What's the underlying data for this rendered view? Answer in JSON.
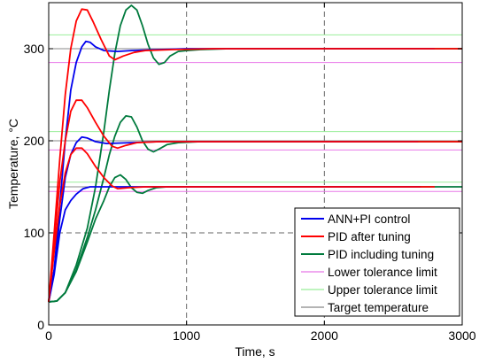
{
  "chart_data": {
    "type": "line",
    "xlabel": "Time, s",
    "ylabel": "Temperature, °C",
    "xlim": [
      0,
      3000
    ],
    "ylim": [
      0,
      350
    ],
    "xticks": [
      0,
      1000,
      2000,
      3000
    ],
    "yticks": [
      0,
      100,
      200,
      300
    ],
    "xtick_labels": [
      "0",
      "1000",
      "2000",
      "3000"
    ],
    "ytick_labels": [
      "0",
      "100",
      "200",
      "300"
    ],
    "grid": "dashed lines at x=1000, x=2000, y=100",
    "legend_position": "bottom-right",
    "colors": {
      "ann_pi": "#0000ee",
      "pid_after": "#ff0000",
      "pid_including": "#007a3d",
      "lower_limit": "#e878e8",
      "upper_limit": "#99ee99",
      "target": "#888888",
      "grid": "#666666"
    },
    "series": [
      {
        "name": "ANN+PI control",
        "color_key": "ann_pi",
        "runs": [
          {
            "target": 300,
            "points": [
              [
                0,
                25
              ],
              [
                40,
                60
              ],
              [
                80,
                130
              ],
              [
                120,
                200
              ],
              [
                160,
                255
              ],
              [
                200,
                285
              ],
              [
                240,
                302
              ],
              [
                270,
                308
              ],
              [
                300,
                307
              ],
              [
                340,
                302
              ],
              [
                400,
                298
              ],
              [
                500,
                297
              ],
              [
                600,
                298
              ],
              [
                800,
                299
              ],
              [
                1000,
                300
              ],
              [
                1400,
                300
              ],
              [
                2000,
                300
              ],
              [
                2800,
                300
              ]
            ]
          },
          {
            "target": 200,
            "points": [
              [
                0,
                25
              ],
              [
                40,
                60
              ],
              [
                80,
                115
              ],
              [
                120,
                160
              ],
              [
                160,
                185
              ],
              [
                200,
                198
              ],
              [
                240,
                204
              ],
              [
                280,
                203
              ],
              [
                340,
                199
              ],
              [
                420,
                197
              ],
              [
                600,
                198
              ],
              [
                800,
                199
              ],
              [
                1200,
                199
              ],
              [
                2000,
                199
              ],
              [
                2680,
                199
              ]
            ]
          },
          {
            "target": 150,
            "points": [
              [
                0,
                25
              ],
              [
                40,
                55
              ],
              [
                80,
                100
              ],
              [
                120,
                125
              ],
              [
                160,
                135
              ],
              [
                200,
                142
              ],
              [
                250,
                148
              ],
              [
                300,
                150
              ],
              [
                400,
                150
              ],
              [
                600,
                150
              ],
              [
                1000,
                150
              ],
              [
                1500,
                150
              ],
              [
                2000,
                150
              ],
              [
                2700,
                150
              ]
            ]
          }
        ]
      },
      {
        "name": "PID after tuning",
        "color_key": "pid_after",
        "runs": [
          {
            "target": 300,
            "points": [
              [
                0,
                25
              ],
              [
                40,
                100
              ],
              [
                80,
                180
              ],
              [
                120,
                250
              ],
              [
                160,
                300
              ],
              [
                200,
                330
              ],
              [
                240,
                343
              ],
              [
                280,
                342
              ],
              [
                320,
                330
              ],
              [
                380,
                310
              ],
              [
                440,
                292
              ],
              [
                480,
                288
              ],
              [
                540,
                292
              ],
              [
                620,
                296
              ],
              [
                700,
                298
              ],
              [
                900,
                299
              ],
              [
                1200,
                300
              ],
              [
                2000,
                300
              ],
              [
                3000,
                300
              ]
            ]
          },
          {
            "target": 200,
            "points": [
              [
                0,
                25
              ],
              [
                40,
                90
              ],
              [
                80,
                155
              ],
              [
                120,
                200
              ],
              [
                160,
                232
              ],
              [
                200,
                244
              ],
              [
                240,
                244
              ],
              [
                280,
                236
              ],
              [
                340,
                220
              ],
              [
                400,
                205
              ],
              [
                460,
                194
              ],
              [
                500,
                192
              ],
              [
                560,
                195
              ],
              [
                640,
                198
              ],
              [
                800,
                199
              ],
              [
                1200,
                199
              ],
              [
                2000,
                199
              ],
              [
                3000,
                199
              ]
            ]
          },
          {
            "target": 150,
            "points": [
              [
                0,
                25
              ],
              [
                40,
                80
              ],
              [
                80,
                130
              ],
              [
                120,
                165
              ],
              [
                160,
                185
              ],
              [
                200,
                192
              ],
              [
                240,
                192
              ],
              [
                280,
                186
              ],
              [
                340,
                172
              ],
              [
                400,
                160
              ],
              [
                460,
                151
              ],
              [
                500,
                148
              ],
              [
                580,
                149
              ],
              [
                700,
                150
              ],
              [
                1000,
                150
              ],
              [
                2000,
                150
              ],
              [
                2800,
                150
              ]
            ]
          }
        ]
      },
      {
        "name": "PID including tuning",
        "color_key": "pid_including",
        "runs": [
          {
            "target": 300,
            "points": [
              [
                0,
                25
              ],
              [
                60,
                26
              ],
              [
                120,
                35
              ],
              [
                200,
                65
              ],
              [
                280,
                105
              ],
              [
                340,
                150
              ],
              [
                400,
                210
              ],
              [
                440,
                255
              ],
              [
                480,
                295
              ],
              [
                520,
                325
              ],
              [
                560,
                342
              ],
              [
                600,
                347
              ],
              [
                640,
                342
              ],
              [
                680,
                325
              ],
              [
                720,
                305
              ],
              [
                760,
                290
              ],
              [
                800,
                283
              ],
              [
                840,
                285
              ],
              [
                880,
                292
              ],
              [
                940,
                297
              ],
              [
                1000,
                298
              ],
              [
                1100,
                299
              ],
              [
                1300,
                300
              ],
              [
                2000,
                300
              ],
              [
                3000,
                300
              ]
            ]
          },
          {
            "target": 200,
            "points": [
              [
                0,
                25
              ],
              [
                60,
                26
              ],
              [
                120,
                35
              ],
              [
                200,
                60
              ],
              [
                280,
                95
              ],
              [
                340,
                125
              ],
              [
                400,
                160
              ],
              [
                440,
                185
              ],
              [
                480,
                205
              ],
              [
                520,
                220
              ],
              [
                560,
                227
              ],
              [
                600,
                226
              ],
              [
                640,
                215
              ],
              [
                680,
                200
              ],
              [
                720,
                191
              ],
              [
                760,
                188
              ],
              [
                800,
                191
              ],
              [
                860,
                196
              ],
              [
                940,
                198
              ],
              [
                1100,
                199
              ],
              [
                1500,
                199
              ],
              [
                2000,
                199
              ],
              [
                3000,
                199
              ]
            ]
          },
          {
            "target": 150,
            "points": [
              [
                0,
                25
              ],
              [
                60,
                26
              ],
              [
                120,
                35
              ],
              [
                200,
                58
              ],
              [
                280,
                90
              ],
              [
                340,
                115
              ],
              [
                400,
                135
              ],
              [
                440,
                150
              ],
              [
                480,
                160
              ],
              [
                520,
                163
              ],
              [
                560,
                158
              ],
              [
                600,
                149
              ],
              [
                640,
                144
              ],
              [
                680,
                143
              ],
              [
                720,
                146
              ],
              [
                780,
                149
              ],
              [
                860,
                150
              ],
              [
                1000,
                150
              ],
              [
                1500,
                150
              ],
              [
                2000,
                150
              ],
              [
                3000,
                150
              ]
            ]
          }
        ]
      },
      {
        "name": "Lower tolerance limit",
        "color_key": "lower_limit",
        "levels": [
          285,
          190,
          145
        ]
      },
      {
        "name": "Upper tolerance limit",
        "color_key": "upper_limit",
        "levels": [
          315,
          210,
          155
        ]
      },
      {
        "name": "Target temperature",
        "color_key": "target",
        "levels": [
          300,
          200,
          150
        ]
      }
    ]
  }
}
